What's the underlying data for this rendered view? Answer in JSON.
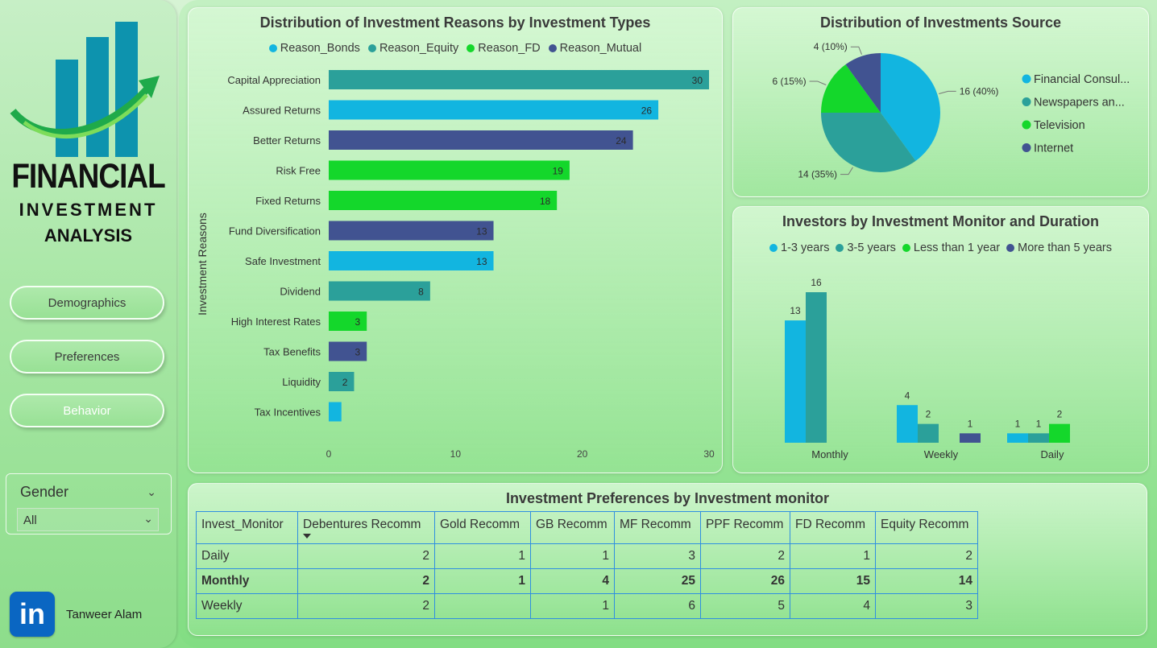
{
  "sidebar": {
    "logo": {
      "line1": "FINANCIAL",
      "line2": "INVESTMENT",
      "line3": "ANALYSIS"
    },
    "nav": [
      {
        "label": "Demographics",
        "color": "#3a3a3a"
      },
      {
        "label": "Preferences",
        "color": "#3a3a3a"
      },
      {
        "label": "Behavior",
        "color": "#ffffff"
      }
    ],
    "gender_filter": {
      "label": "Gender",
      "value": "All"
    },
    "author": {
      "name": "Tanweer Alam",
      "icon": "linkedin-icon",
      "icon_text": "in"
    }
  },
  "colors": {
    "bonds": "#12b5e0",
    "equity": "#2ba09a",
    "fd": "#14d72b",
    "mutual": "#415391"
  },
  "chart_data": [
    {
      "type": "bar",
      "orientation": "horizontal",
      "title": "Distribution of Investment Reasons by Investment Types",
      "ylabel": "Investment Reasons",
      "xlim": [
        0,
        30
      ],
      "xticks": [
        0,
        10,
        20,
        30
      ],
      "legend_position": "top",
      "series": [
        {
          "name": "Reason_Bonds",
          "color": "#12b5e0"
        },
        {
          "name": "Reason_Equity",
          "color": "#2ba09a"
        },
        {
          "name": "Reason_FD",
          "color": "#14d72b"
        },
        {
          "name": "Reason_Mutual",
          "color": "#415391"
        }
      ],
      "bars": [
        {
          "category": "Capital Appreciation",
          "value": 30,
          "series": "Reason_Equity"
        },
        {
          "category": "Assured Returns",
          "value": 26,
          "series": "Reason_Bonds"
        },
        {
          "category": "Better Returns",
          "value": 24,
          "series": "Reason_Mutual"
        },
        {
          "category": "Risk Free",
          "value": 19,
          "series": "Reason_FD"
        },
        {
          "category": "Fixed Returns",
          "value": 18,
          "series": "Reason_FD"
        },
        {
          "category": "Fund Diversification",
          "value": 13,
          "series": "Reason_Mutual"
        },
        {
          "category": "Safe Investment",
          "value": 13,
          "series": "Reason_Bonds"
        },
        {
          "category": "Dividend",
          "value": 8,
          "series": "Reason_Equity"
        },
        {
          "category": "High Interest Rates",
          "value": 3,
          "series": "Reason_FD"
        },
        {
          "category": "Tax Benefits",
          "value": 3,
          "series": "Reason_Mutual"
        },
        {
          "category": "Liquidity",
          "value": 2,
          "series": "Reason_Equity"
        },
        {
          "category": "Tax Incentives",
          "value": 1,
          "series": "Reason_Bonds",
          "show_label": false
        }
      ]
    },
    {
      "type": "pie",
      "title": "Distribution of Investments Source",
      "legend_position": "right",
      "slices": [
        {
          "name": "Financial Consul...",
          "value": 16,
          "label": "16 (40%)",
          "color": "#12b5e0"
        },
        {
          "name": "Newspapers an...",
          "value": 14,
          "label": "14 (35%)",
          "color": "#2ba09a"
        },
        {
          "name": "Television",
          "value": 6,
          "label": "6 (15%)",
          "color": "#14d72b"
        },
        {
          "name": "Internet",
          "value": 4,
          "label": "4 (10%)",
          "color": "#415391"
        }
      ]
    },
    {
      "type": "bar",
      "orientation": "vertical",
      "title": "Investors by Investment Monitor and Duration",
      "legend_position": "top",
      "ylim": [
        0,
        16
      ],
      "categories": [
        "Monthly",
        "Weekly",
        "Daily"
      ],
      "series": [
        {
          "name": "1-3 years",
          "color": "#12b5e0",
          "values": [
            13,
            4,
            1
          ]
        },
        {
          "name": "3-5 years",
          "color": "#2ba09a",
          "values": [
            16,
            2,
            1
          ]
        },
        {
          "name": "Less than 1 year",
          "color": "#14d72b",
          "values": [
            null,
            null,
            2
          ]
        },
        {
          "name": "More than 5 years",
          "color": "#415391",
          "values": [
            null,
            1,
            null
          ]
        }
      ]
    },
    {
      "type": "table",
      "title": "Investment Preferences by Investment monitor",
      "columns": [
        "Invest_Monitor",
        "Debentures Recomm",
        "Gold Recomm",
        "GB Recomm",
        "MF Recomm",
        "PPF Recomm",
        "FD Recomm",
        "Equity Recomm"
      ],
      "sort_column": "Debentures Recomm",
      "rows": [
        {
          "label": "Daily",
          "values": [
            "2",
            "1",
            "1",
            "3",
            "2",
            "1",
            "2"
          ],
          "bold": false
        },
        {
          "label": "Monthly",
          "values": [
            "2",
            "1",
            "4",
            "25",
            "26",
            "15",
            "14"
          ],
          "bold": true
        },
        {
          "label": "Weekly",
          "values": [
            "2",
            "",
            "1",
            "6",
            "5",
            "4",
            "3"
          ],
          "bold": false
        }
      ]
    }
  ]
}
